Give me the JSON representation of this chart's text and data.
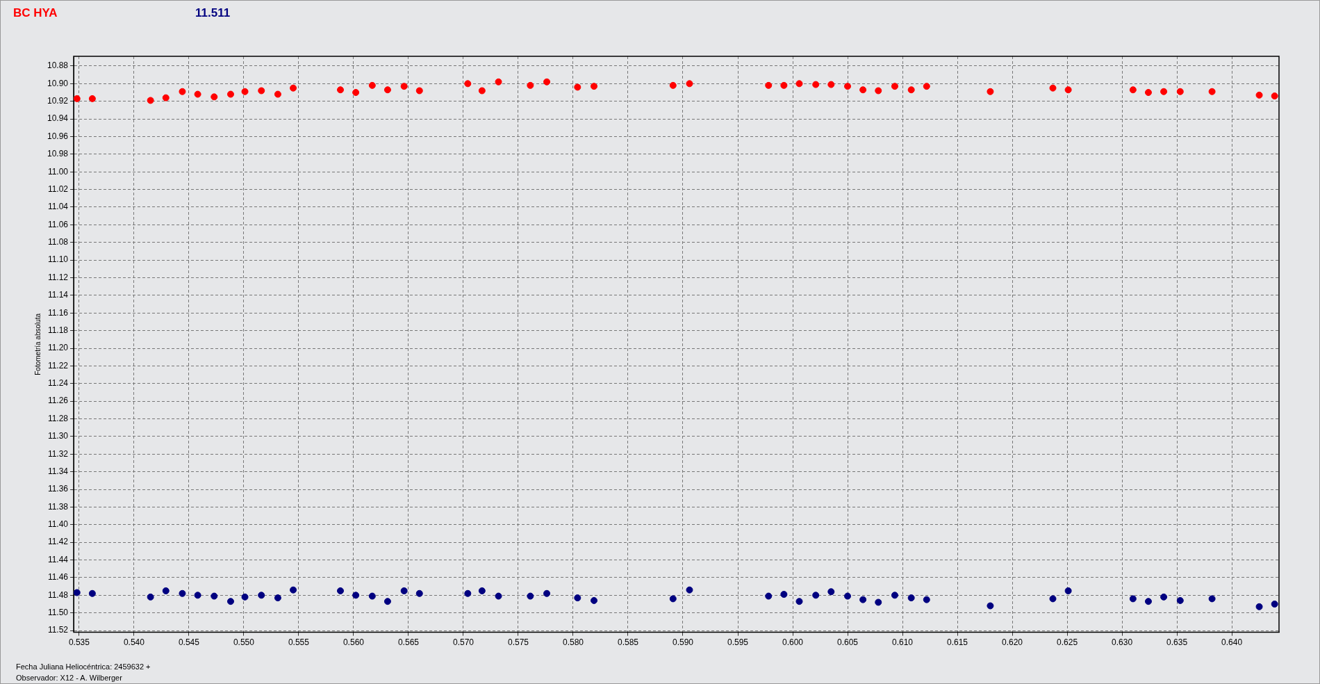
{
  "chart_data": {
    "type": "scatter",
    "xlabel": "Fecha Juliana Heliocéntrica: 2459632 +",
    "ylabel": "Fotometría absoluta",
    "annotations": [
      "Observador: X12 - A. Wilberger"
    ],
    "x": [
      0.5348,
      0.5362,
      0.5415,
      0.5429,
      0.5444,
      0.5458,
      0.5473,
      0.5488,
      0.5501,
      0.5516,
      0.5531,
      0.5545,
      0.5588,
      0.5602,
      0.5617,
      0.5631,
      0.5646,
      0.566,
      0.5704,
      0.5717,
      0.5732,
      0.5761,
      0.5776,
      0.5804,
      0.5819,
      0.5891,
      0.5906,
      0.5978,
      0.5992,
      0.6006,
      0.6021,
      0.6035,
      0.605,
      0.6064,
      0.6078,
      0.6093,
      0.6108,
      0.6122,
      0.618,
      0.6237,
      0.6251,
      0.631,
      0.6324,
      0.6338,
      0.6353,
      0.6382,
      0.6425,
      0.6439
    ],
    "series": [
      {
        "name": "BC HYA",
        "color": "#ff0000",
        "values": [
          10.917,
          10.917,
          10.919,
          10.916,
          10.909,
          10.912,
          10.915,
          10.912,
          10.909,
          10.908,
          10.912,
          10.905,
          10.907,
          10.91,
          10.902,
          10.907,
          10.903,
          10.908,
          10.9,
          10.908,
          10.898,
          10.902,
          10.898,
          10.904,
          10.903,
          10.902,
          10.9,
          10.902,
          10.902,
          10.9,
          10.901,
          10.901,
          10.903,
          10.907,
          10.908,
          10.903,
          10.907,
          10.903,
          10.909,
          10.905,
          10.907,
          10.907,
          10.91,
          10.909,
          10.909,
          10.909,
          10.913,
          10.914
        ]
      },
      {
        "name": "11.511",
        "color": "#000080",
        "values": [
          11.477,
          11.478,
          11.482,
          11.475,
          11.478,
          11.48,
          11.481,
          11.487,
          11.482,
          11.48,
          11.483,
          11.474,
          11.475,
          11.48,
          11.481,
          11.487,
          11.475,
          11.478,
          11.478,
          11.475,
          11.481,
          11.481,
          11.478,
          11.483,
          11.486,
          11.484,
          11.474,
          11.481,
          11.479,
          11.487,
          11.48,
          11.476,
          11.481,
          11.485,
          11.488,
          11.48,
          11.483,
          11.485,
          11.492,
          11.484,
          11.475,
          11.484,
          11.487,
          11.482,
          11.486,
          11.484,
          11.493,
          11.49
        ]
      }
    ],
    "xlim": [
      0.5345,
      0.6443
    ],
    "xticks": [
      0.535,
      {
        "value": 0.54,
        "label": "0.540"
      },
      0.545,
      {
        "value": 0.55,
        "label": "0.550"
      },
      0.555,
      {
        "value": 0.56,
        "label": "0.560"
      },
      0.565,
      {
        "value": 0.57,
        "label": "0.570"
      },
      0.575,
      {
        "value": 0.58,
        "label": "0.580"
      },
      0.585,
      {
        "value": 0.59,
        "label": "0.590"
      },
      0.595,
      {
        "value": 0.6,
        "label": "0.600"
      },
      0.605,
      {
        "value": 0.61,
        "label": "0.610"
      },
      0.615,
      {
        "value": 0.62,
        "label": "0.620"
      },
      0.625,
      {
        "value": 0.63,
        "label": "0.630"
      },
      0.635,
      {
        "value": 0.64,
        "label": "0.640"
      }
    ],
    "ylim": [
      11.522,
      10.869
    ],
    "yticks": [
      10.88,
      {
        "value": 10.9,
        "label": "10.90"
      },
      10.92,
      10.94,
      10.96,
      10.98,
      {
        "value": 11.0,
        "label": "11.00"
      },
      11.02,
      11.04,
      11.06,
      11.08,
      {
        "value": 11.1,
        "label": "11.10"
      },
      11.12,
      11.14,
      11.16,
      11.18,
      {
        "value": 11.2,
        "label": "11.20"
      },
      11.22,
      11.24,
      11.26,
      11.28,
      {
        "value": 11.3,
        "label": "11.30"
      },
      11.32,
      11.34,
      11.36,
      11.38,
      {
        "value": 11.4,
        "label": "11.40"
      },
      11.42,
      11.44,
      11.46,
      11.48,
      {
        "value": 11.5,
        "label": "11.50"
      },
      11.52
    ],
    "grid": true,
    "legend": "top left",
    "marker": "circle"
  }
}
